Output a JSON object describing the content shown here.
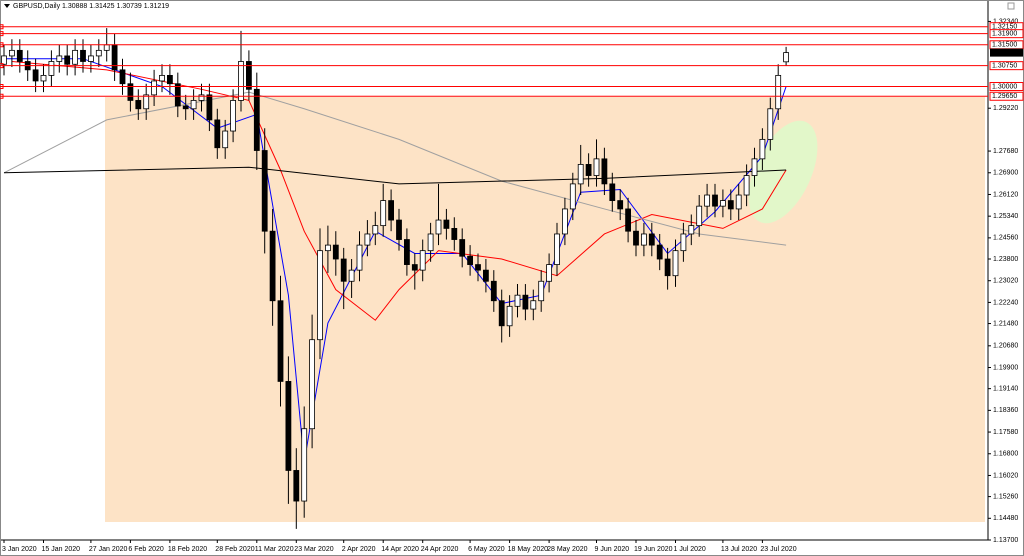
{
  "chart_data": {
    "type": "candlestick",
    "title": "GBPUSD,Daily  1.30888 1.31425 1.30739 1.31219",
    "categories": [
      "3 Jan 2020",
      null,
      null,
      null,
      null,
      "15 Jan 2020",
      null,
      null,
      null,
      null,
      null,
      "27 Jan 2020",
      null,
      null,
      null,
      null,
      "6 Feb 2020",
      null,
      null,
      null,
      null,
      "18 Feb 2020",
      null,
      null,
      null,
      null,
      null,
      "28 Feb 2020",
      null,
      null,
      null,
      null,
      "11 Mar 2020",
      null,
      null,
      null,
      null,
      "23 Mar 2020",
      null,
      null,
      null,
      null,
      null,
      "2 Apr 2020",
      null,
      null,
      null,
      null,
      "14 Apr 2020",
      null,
      null,
      null,
      null,
      "24 Apr 2020",
      null,
      null,
      null,
      null,
      null,
      "6 May 2020",
      null,
      null,
      null,
      null,
      "18 May 2020",
      null,
      null,
      null,
      null,
      "28 May 2020",
      null,
      null,
      null,
      null,
      null,
      "9 Jun 2020",
      null,
      null,
      null,
      null,
      "19 Jun 2020",
      null,
      null,
      null,
      null,
      "1 Jul 2020",
      null,
      null,
      null,
      null,
      null,
      "13 Jul 2020",
      null,
      null,
      null,
      null,
      "23 Jul 2020",
      null,
      null,
      null
    ],
    "open": [
      1.308,
      1.311,
      1.313,
      1.309,
      1.306,
      1.302,
      1.304,
      1.309,
      1.311,
      1.308,
      1.313,
      1.309,
      1.311,
      1.313,
      1.315,
      1.306,
      1.301,
      1.295,
      1.292,
      1.297,
      1.302,
      1.304,
      1.301,
      1.293,
      1.292,
      1.295,
      1.297,
      1.288,
      1.278,
      1.284,
      1.295,
      1.309,
      1.299,
      1.277,
      1.248,
      1.223,
      1.194,
      1.162,
      1.151,
      1.177,
      1.209,
      1.241,
      1.243,
      1.238,
      1.23,
      1.234,
      1.243,
      1.247,
      1.25,
      1.259,
      1.252,
      1.245,
      1.236,
      1.234,
      1.241,
      1.247,
      1.252,
      1.249,
      1.245,
      1.239,
      1.236,
      1.234,
      1.23,
      1.223,
      1.214,
      1.221,
      1.225,
      1.22,
      1.223,
      1.23,
      1.236,
      1.247,
      1.256,
      1.265,
      1.272,
      1.268,
      1.274,
      1.265,
      1.259,
      1.256,
      1.248,
      1.243,
      1.247,
      1.243,
      1.238,
      1.232,
      1.241,
      1.247,
      1.25,
      1.257,
      1.261,
      1.257,
      1.259,
      1.256,
      1.261,
      1.268,
      1.274,
      1.281,
      1.292,
      1.30888
    ],
    "high": [
      1.315,
      1.317,
      1.317,
      1.313,
      1.31,
      1.308,
      1.313,
      1.315,
      1.315,
      1.317,
      1.317,
      1.315,
      1.317,
      1.321,
      1.319,
      1.31,
      1.305,
      1.299,
      1.301,
      1.306,
      1.308,
      1.308,
      1.305,
      1.297,
      1.299,
      1.301,
      1.301,
      1.292,
      1.288,
      1.299,
      1.32,
      1.313,
      1.305,
      1.285,
      1.256,
      1.232,
      1.203,
      1.17,
      1.185,
      1.218,
      1.249,
      1.25,
      1.248,
      1.242,
      1.238,
      1.248,
      1.252,
      1.255,
      1.265,
      1.263,
      1.256,
      1.249,
      1.24,
      1.245,
      1.251,
      1.265,
      1.256,
      1.253,
      1.249,
      1.243,
      1.24,
      1.238,
      1.234,
      1.227,
      1.225,
      1.229,
      1.229,
      1.227,
      1.234,
      1.24,
      1.251,
      1.26,
      1.269,
      1.279,
      1.276,
      1.281,
      1.278,
      1.269,
      1.263,
      1.26,
      1.252,
      1.251,
      1.251,
      1.247,
      1.242,
      1.245,
      1.251,
      1.254,
      1.261,
      1.265,
      1.265,
      1.263,
      1.263,
      1.265,
      1.272,
      1.278,
      1.285,
      1.296,
      1.308,
      1.31425
    ],
    "low": [
      1.304,
      1.307,
      1.305,
      1.302,
      1.298,
      1.298,
      1.3,
      1.305,
      1.304,
      1.304,
      1.305,
      1.305,
      1.307,
      1.309,
      1.302,
      1.297,
      1.291,
      1.288,
      1.288,
      1.293,
      1.298,
      1.297,
      1.289,
      1.288,
      1.288,
      1.291,
      1.284,
      1.274,
      1.274,
      1.28,
      1.291,
      1.295,
      1.27,
      1.24,
      1.214,
      1.185,
      1.15,
      1.141,
      1.145,
      1.17,
      1.202,
      1.233,
      1.232,
      1.22,
      1.224,
      1.23,
      1.239,
      1.243,
      1.246,
      1.248,
      1.241,
      1.232,
      1.227,
      1.23,
      1.237,
      1.243,
      1.245,
      1.241,
      1.235,
      1.232,
      1.23,
      1.226,
      1.219,
      1.208,
      1.21,
      1.217,
      1.216,
      1.216,
      1.219,
      1.226,
      1.232,
      1.243,
      1.252,
      1.261,
      1.264,
      1.264,
      1.261,
      1.255,
      1.252,
      1.244,
      1.239,
      1.239,
      1.239,
      1.234,
      1.227,
      1.228,
      1.237,
      1.243,
      1.246,
      1.253,
      1.253,
      1.253,
      1.252,
      1.252,
      1.257,
      1.264,
      1.27,
      1.277,
      1.288,
      1.30739
    ],
    "close": [
      1.311,
      1.313,
      1.309,
      1.306,
      1.302,
      1.304,
      1.309,
      1.311,
      1.308,
      1.313,
      1.309,
      1.311,
      1.313,
      1.315,
      1.306,
      1.301,
      1.295,
      1.292,
      1.297,
      1.302,
      1.304,
      1.301,
      1.293,
      1.292,
      1.295,
      1.297,
      1.288,
      1.278,
      1.284,
      1.295,
      1.309,
      1.299,
      1.277,
      1.248,
      1.223,
      1.194,
      1.162,
      1.151,
      1.177,
      1.209,
      1.241,
      1.243,
      1.238,
      1.23,
      1.234,
      1.243,
      1.247,
      1.25,
      1.259,
      1.252,
      1.245,
      1.236,
      1.234,
      1.241,
      1.247,
      1.252,
      1.249,
      1.245,
      1.239,
      1.236,
      1.234,
      1.23,
      1.223,
      1.214,
      1.221,
      1.225,
      1.22,
      1.223,
      1.23,
      1.236,
      1.247,
      1.256,
      1.265,
      1.272,
      1.268,
      1.274,
      1.265,
      1.259,
      1.256,
      1.248,
      1.243,
      1.247,
      1.243,
      1.238,
      1.232,
      1.241,
      1.247,
      1.25,
      1.257,
      1.261,
      1.257,
      1.259,
      1.256,
      1.261,
      1.268,
      1.274,
      1.281,
      1.292,
      1.304,
      1.31219
    ],
    "lines": [
      {
        "color": "#0000ff",
        "x": [
          0,
          10,
          20,
          27,
          32,
          36,
          38,
          41,
          47,
          52,
          58,
          63,
          68,
          73,
          78,
          84,
          90,
          96,
          99
        ],
        "values": [
          1.31,
          1.31,
          1.3,
          1.285,
          1.29,
          1.225,
          1.165,
          1.215,
          1.248,
          1.24,
          1.24,
          1.222,
          1.225,
          1.262,
          1.263,
          1.24,
          1.255,
          1.275,
          1.3
        ]
      },
      {
        "color": "#ff0000",
        "x": [
          1,
          13,
          25,
          31,
          35,
          38,
          42,
          47,
          50,
          55,
          63,
          70,
          76,
          82,
          91,
          96,
          99
        ],
        "values": [
          1.309,
          1.306,
          1.299,
          1.295,
          1.27,
          1.248,
          1.227,
          1.216,
          1.227,
          1.241,
          1.238,
          1.232,
          1.247,
          1.254,
          1.249,
          1.256,
          1.27
        ]
      },
      {
        "color": "#a0a0a0",
        "x": [
          0,
          13,
          31,
          38,
          50,
          63,
          76,
          88,
          99
        ],
        "values": [
          1.269,
          1.288,
          1.298,
          1.292,
          1.281,
          1.266,
          1.256,
          1.247,
          1.243
        ]
      },
      {
        "color": "#000000",
        "x": [
          0,
          31,
          50,
          76,
          99
        ],
        "values": [
          1.269,
          1.271,
          1.265,
          1.267,
          1.27
        ]
      }
    ],
    "levels": [
      {
        "value": 1.3215,
        "label": "1.32150"
      },
      {
        "value": 1.319,
        "label": "1.31900"
      },
      {
        "value": 1.315,
        "label": "1.31500"
      },
      {
        "value": 1.3075,
        "label": "1.30750"
      },
      {
        "value": 1.3,
        "label": "1.30000"
      },
      {
        "value": 1.2965,
        "label": "1.29650"
      }
    ],
    "last_price": {
      "value": 1.31219,
      "label": "1.31219"
    },
    "ylim": [
      1.137,
      1.3311
    ],
    "yticks": [
      {
        "value": 1.137,
        "label": "1.13700"
      },
      {
        "value": 1.1448,
        "label": "1.14480"
      },
      {
        "value": 1.1526,
        "label": "1.15260"
      },
      {
        "value": 1.1602,
        "label": "1.16020"
      },
      {
        "value": 1.168,
        "label": "1.16800"
      },
      {
        "value": 1.1758,
        "label": "1.17580"
      },
      {
        "value": 1.1836,
        "label": "1.18360"
      },
      {
        "value": 1.1914,
        "label": "1.19140"
      },
      {
        "value": 1.199,
        "label": "1.19900"
      },
      {
        "value": 1.2068,
        "label": "1.20680"
      },
      {
        "value": 1.2148,
        "label": "1.21480"
      },
      {
        "value": 1.2224,
        "label": "1.22240"
      },
      {
        "value": 1.2302,
        "label": "1.23020"
      },
      {
        "value": 1.238,
        "label": "1.23800"
      },
      {
        "value": 1.2456,
        "label": "1.24560"
      },
      {
        "value": 1.2534,
        "label": "1.25340"
      },
      {
        "value": 1.2612,
        "label": "1.26120"
      },
      {
        "value": 1.269,
        "label": "1.26900"
      },
      {
        "value": 1.2768,
        "label": "1.27680"
      },
      {
        "value": 1.2922,
        "label": "1.29220"
      },
      {
        "value": 1.3234,
        "label": "1.32340"
      }
    ]
  }
}
